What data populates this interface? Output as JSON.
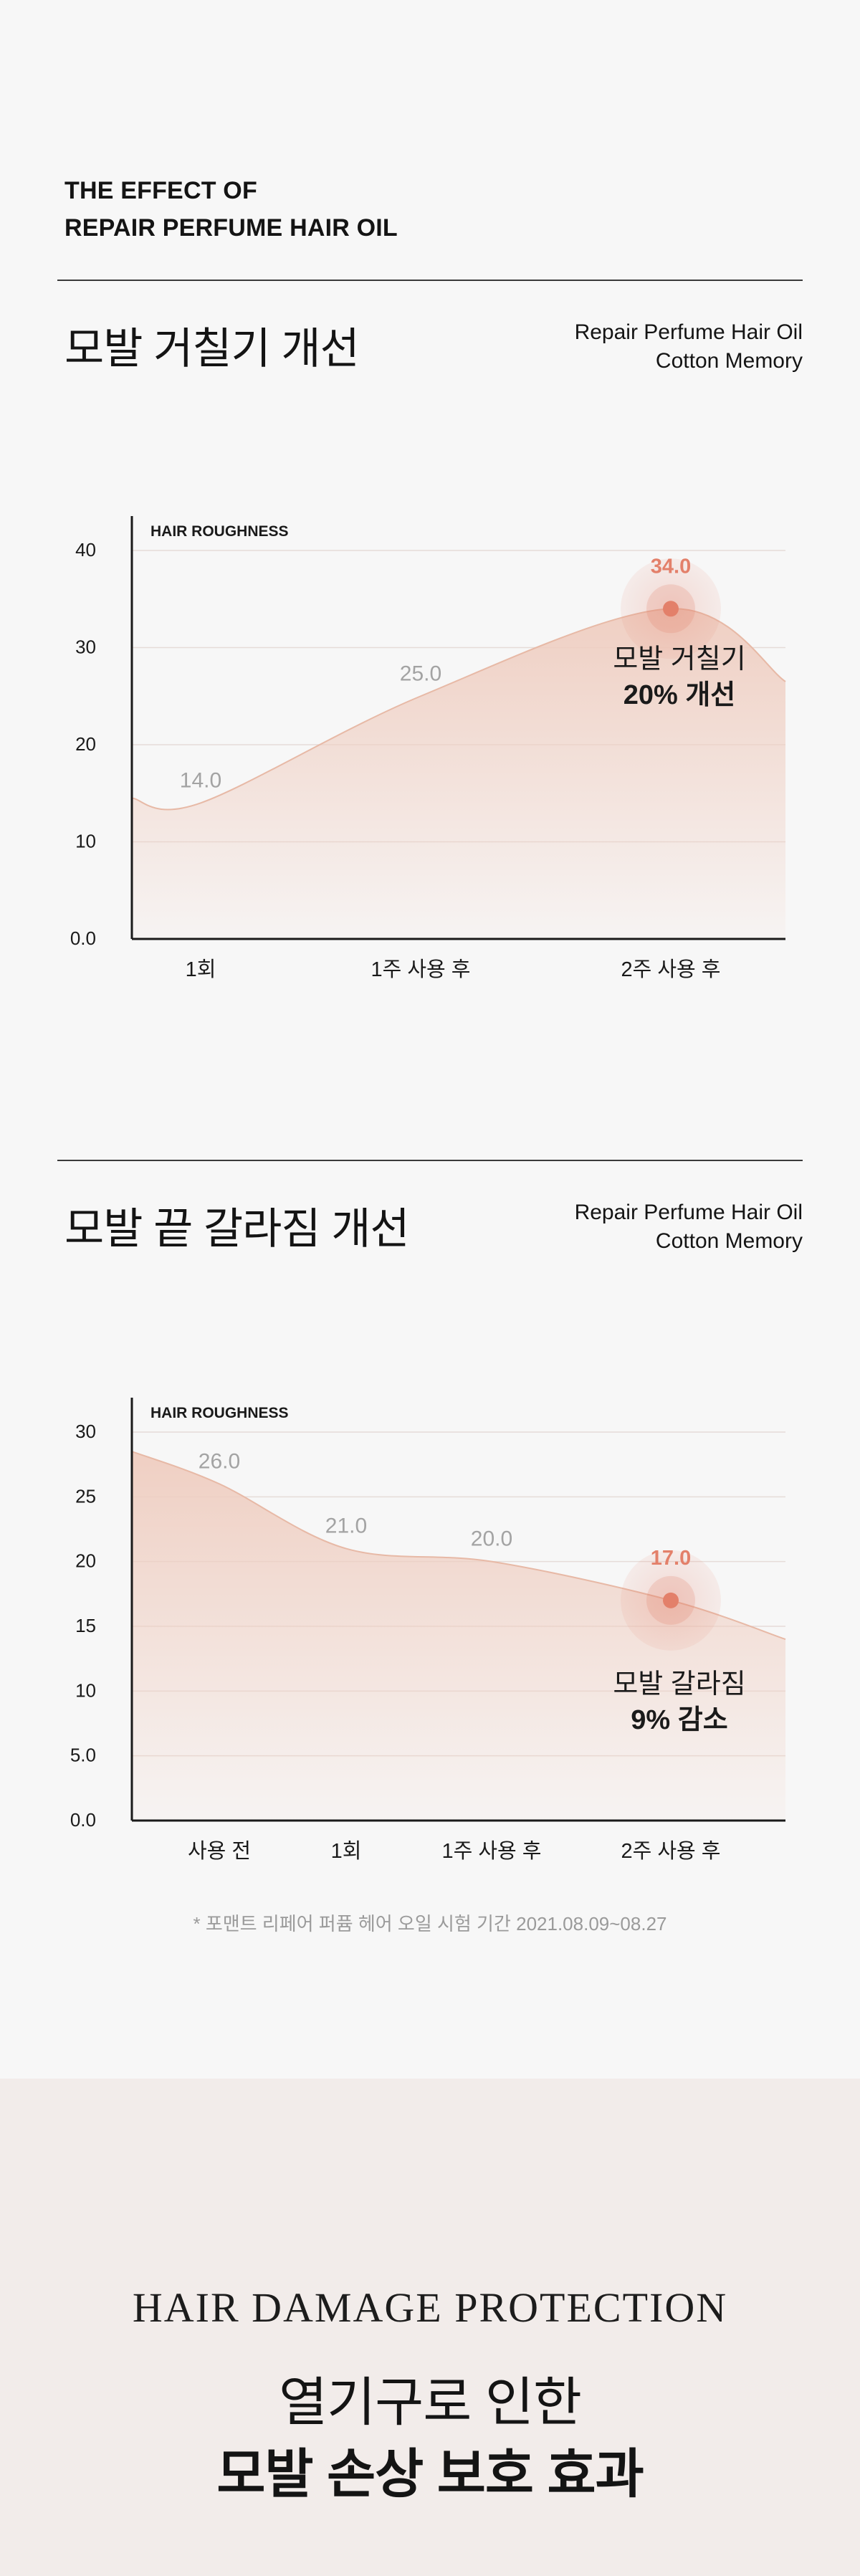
{
  "intro": {
    "line1": "THE EFFECT OF",
    "line2": "REPAIR PERFUME HAIR OIL"
  },
  "sections": [
    {
      "title": "모발 거칠기 개선",
      "product_line1": "Repair Perfume Hair Oil",
      "product_line2": "Cotton Memory",
      "callout_line1": "모발 거칠기",
      "callout_line2": "20% 개선"
    },
    {
      "title": "모발 끝 갈라짐 개선",
      "product_line1": "Repair Perfume Hair Oil",
      "product_line2": "Cotton Memory",
      "callout_line1": "모발 갈라짐",
      "callout_line2": "9% 감소"
    }
  ],
  "chart_data": [
    {
      "type": "area",
      "title": "HAIR ROUGHNESS",
      "categories": [
        "1회",
        "1주 사용 후",
        "2주 사용 후"
      ],
      "values": [
        14.0,
        25.0,
        34.0
      ],
      "value_labels": [
        "14.0",
        "25.0",
        "34.0"
      ],
      "y_ticks": [
        "0.0",
        "10",
        "20",
        "30",
        "40"
      ],
      "ylim": [
        0,
        40
      ],
      "highlight_index": 2,
      "grid": true,
      "colors": {
        "fill": "#efcdc0",
        "line": "#e7b9a6",
        "accent": "#e3806a",
        "label": "#a3a3a3"
      }
    },
    {
      "type": "area",
      "title": "HAIR ROUGHNESS",
      "categories": [
        "사용 전",
        "1회",
        "1주 사용 후",
        "2주 사용 후"
      ],
      "values": [
        26.0,
        21.0,
        20.0,
        17.0
      ],
      "value_labels": [
        "26.0",
        "21.0",
        "20.0",
        "17.0"
      ],
      "y_ticks": [
        "0.0",
        "5.0",
        "10",
        "15",
        "20",
        "25",
        "30"
      ],
      "ylim": [
        0,
        30
      ],
      "highlight_index": 3,
      "grid": true,
      "colors": {
        "fill": "#efcdc0",
        "line": "#e7b9a6",
        "accent": "#e3806a",
        "label": "#a3a3a3"
      }
    }
  ],
  "footnote": "* 포맨트 리페어 퍼퓸 헤어 오일 시험 기간 2021.08.09~08.27",
  "bottom": {
    "english_title": "HAIR DAMAGE PROTECTION",
    "korean_line1": "열기구로 인한",
    "korean_line2": "모발 손상 보호 효과"
  }
}
